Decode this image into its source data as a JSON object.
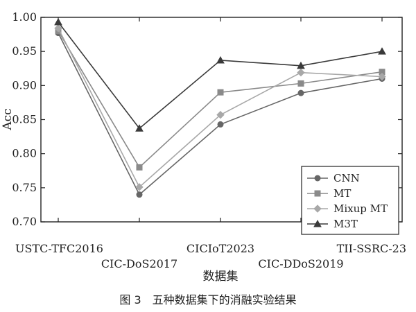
{
  "chart_data": {
    "type": "line",
    "categories": [
      "USTC-TFC2016",
      "CIC-DoS2017",
      "CICIoT2023",
      "CIC-DDoS2019",
      "TII-SSRC-23"
    ],
    "series": [
      {
        "name": "CNN",
        "values": [
          0.977,
          0.74,
          0.843,
          0.889,
          0.91
        ],
        "color": "#666666",
        "marker": "circle"
      },
      {
        "name": "MT",
        "values": [
          0.98,
          0.78,
          0.89,
          0.903,
          0.92
        ],
        "color": "#8a8a8a",
        "marker": "square"
      },
      {
        "name": "Mixup MT",
        "values": [
          0.984,
          0.751,
          0.857,
          0.919,
          0.913
        ],
        "color": "#a8a8a8",
        "marker": "diamond"
      },
      {
        "name": "M3T",
        "values": [
          0.993,
          0.837,
          0.937,
          0.929,
          0.95
        ],
        "color": "#3a3a3a",
        "marker": "triangle"
      }
    ],
    "xlabel": "数据集",
    "ylabel": "Acc",
    "ylim": [
      0.7,
      1.0
    ],
    "yticks": [
      "0.70",
      "0.75",
      "0.80",
      "0.85",
      "0.90",
      "0.95",
      "1.00"
    ],
    "legend_position": "bottom-right",
    "grid": false
  },
  "caption": "图 3　五种数据集下的消融实验结果"
}
